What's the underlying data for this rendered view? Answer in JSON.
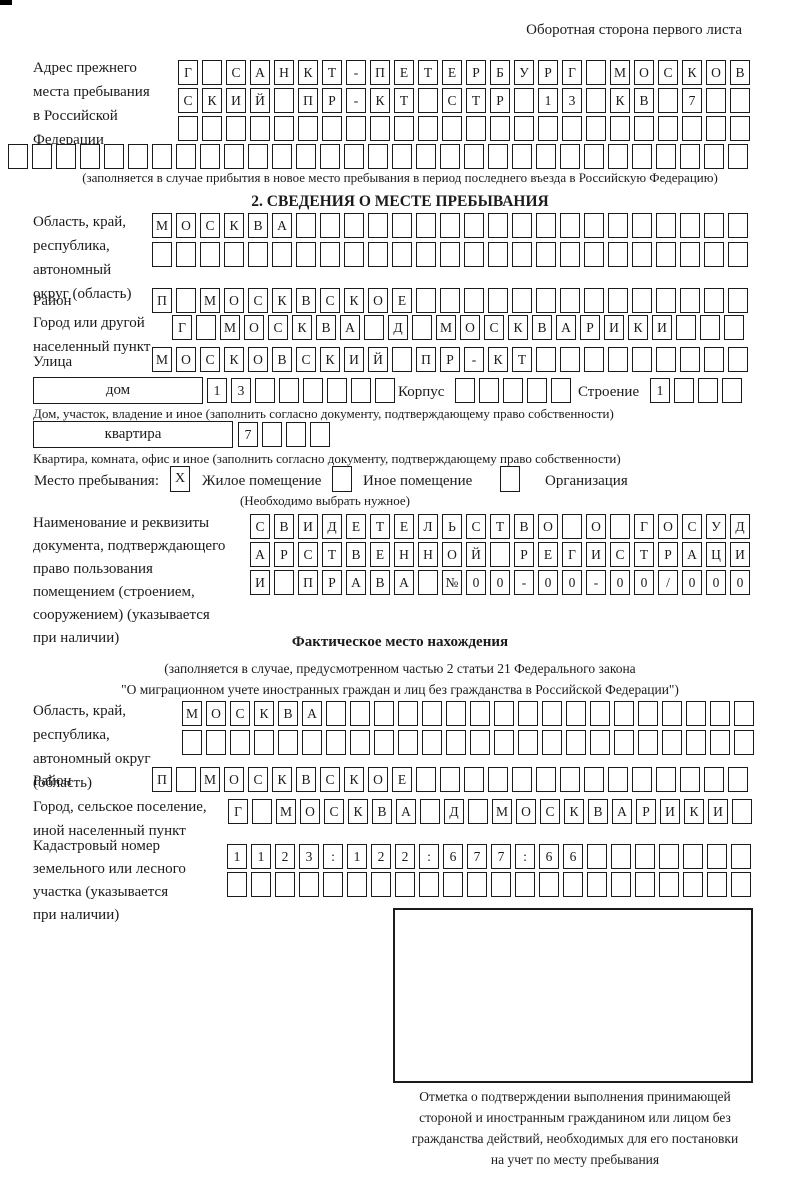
{
  "header": {
    "note": "Оборотная сторона первого листа"
  },
  "prev": {
    "label": [
      "Адрес прежнего",
      "места пребывания",
      "в Российской",
      "Федерации"
    ],
    "rows": [
      "Г САНКТ-ПЕТЕРБУРГ МОСКОВ",
      "СКИЙ ПР-КТ СТР 13 КВ 7",
      "",
      ""
    ],
    "caption": "(заполняется в случае прибытия в новое место пребывания в период последнего въезда в Российскую Федерацию)"
  },
  "s2": {
    "title": "2. СВЕДЕНИЯ О МЕСТЕ ПРЕБЫВАНИЯ",
    "oblast": {
      "label": [
        "Область, край,",
        "республика,",
        "автономный",
        "округ (область)"
      ],
      "rows": [
        "МОСКВА",
        ""
      ]
    },
    "rayon": {
      "label": "Район",
      "row": "П МОСКВСКОЕ"
    },
    "gorod": {
      "label": [
        "Город или другой",
        "населенный пункт"
      ],
      "row": "Г МОСКВА Д МОСКВАРИКИ"
    },
    "ulitsa": {
      "label": "Улица",
      "row": "МОСКОВСКИЙ ПР-КТ"
    },
    "dom": {
      "box_label": "дом",
      "cells": "13",
      "korpus_label": "Корпус",
      "korpus_cells": "",
      "stroenie_label": "Строение",
      "stroenie_cells": "1"
    },
    "dom_caption": "Дом, участок, владение и иное (заполнить согласно документу, подтверждающему право собственности)",
    "kvartira": {
      "box_label": "квартира",
      "cells": "7"
    },
    "kv_caption": "Квартира, комната, офис и иное (заполнить согласно документу, подтверждающему право собственности)",
    "mesto": {
      "label": "Место пребывания:",
      "options": [
        {
          "mark": "X",
          "label": "Жилое помещение"
        },
        {
          "mark": "",
          "label": "Иное помещение"
        },
        {
          "mark": "",
          "label": "Организация"
        }
      ],
      "hint": "(Необходимо выбрать нужное)"
    },
    "doc": {
      "label": [
        "Наименование и реквизиты",
        "документа, подтверждающего",
        "право пользования",
        "помещением (строением,",
        "сооружением) (указывается",
        "при наличии)"
      ],
      "rows": [
        "СВИДЕТЕЛЬСТВО О ГОСУД",
        "АРСТВЕННОЙ РЕГИСТРАЦИ",
        "И ПРАВА №00-00-00/000"
      ]
    }
  },
  "f": {
    "title": "Фактическое место нахождения",
    "note": [
      "(заполняется в случае, предусмотренном частью 2 статьи 21 Федерального закона",
      "\"О миграционном учете иностранных граждан и лиц без гражданства в Российской Федерации\")"
    ],
    "oblast": {
      "label": [
        "Область, край,",
        "республика,",
        "автономный округ",
        "(область)"
      ],
      "rows": [
        "МОСКВА",
        ""
      ]
    },
    "rayon": {
      "label": "Район",
      "row": "П МОСКВСКОЕ"
    },
    "gorod": {
      "label": [
        "Город, сельское поселение,",
        "иной населенный пункт"
      ],
      "row": "Г МОСКВА Д МОСКВАРИКИ"
    },
    "kadastr": {
      "label": [
        "Кадастровый номер",
        "земельного или лесного",
        "участка (указывается",
        "при наличии)"
      ],
      "rows": [
        "1123:122:677:66",
        ""
      ]
    },
    "stamp_caption": [
      "Отметка о подтверждении выполнения принимающей",
      "стороной и иностранным гражданином или лицом без",
      "гражданства действий, необходимых для его постановки",
      "на учет по месту пребывания"
    ]
  }
}
